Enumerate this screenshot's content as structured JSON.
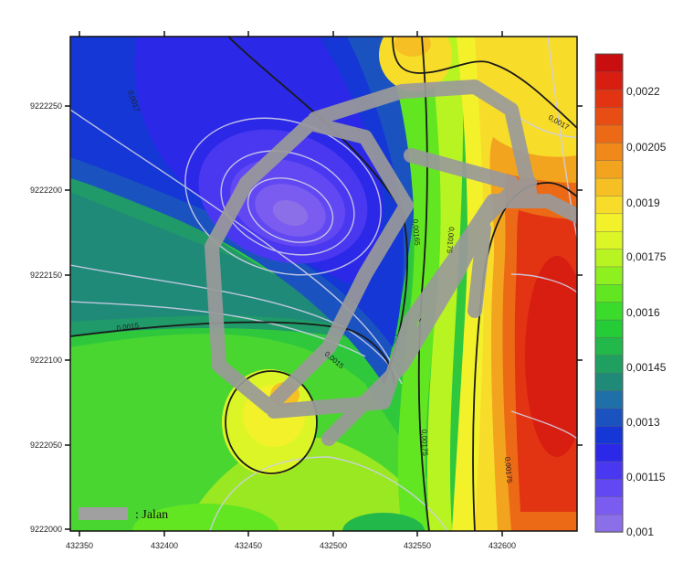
{
  "map": {
    "x_ticks": [
      "432350",
      "432400",
      "432450",
      "432500",
      "432550",
      "432600"
    ],
    "y_ticks": [
      "9222250",
      "9222200",
      "9222150",
      "9222100",
      "9222050",
      "9222000"
    ],
    "contour_labels": [
      "0,0015",
      "0,0015",
      "0,00165",
      "0,00175",
      "0,00175",
      "0,00175",
      "0,0017",
      "0,0017"
    ],
    "legend": {
      "label": ": Jalan",
      "symbol_color": "#a0a0a0"
    }
  },
  "colorbar": {
    "labels": [
      "0,0022",
      "0,00205",
      "0,0019",
      "0,00175",
      "0,0016",
      "0,00145",
      "0,0013",
      "0,00115",
      "0,001"
    ],
    "colors": [
      "#8b6fe8",
      "#7a5cf0",
      "#6248f2",
      "#4a38f0",
      "#2b28e8",
      "#1437d6",
      "#1a53c0",
      "#1f6fa8",
      "#1f8a78",
      "#20a060",
      "#22b84a",
      "#26cc38",
      "#3adb2a",
      "#62e622",
      "#8ff020",
      "#b8f422",
      "#dcf526",
      "#f3f22a",
      "#f8dc2a",
      "#f6c024",
      "#f3a41e",
      "#f0881a",
      "#ec6a16",
      "#e84e14",
      "#e23412",
      "#d81e10",
      "#c80e0e"
    ]
  }
}
